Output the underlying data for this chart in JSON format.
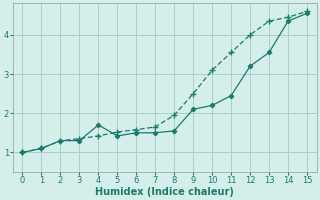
{
  "line_color": "#1a7a6e",
  "bg_color": "#d4eeea",
  "grid_color": "#aacfca",
  "xlabel": "Humidex (Indice chaleur)",
  "xlim": [
    -0.5,
    15.5
  ],
  "ylim": [
    0.5,
    4.8
  ],
  "xticks": [
    0,
    1,
    2,
    3,
    4,
    5,
    6,
    7,
    8,
    9,
    10,
    11,
    12,
    13,
    14,
    15
  ],
  "yticks": [
    1,
    2,
    3,
    4
  ],
  "line1_pts": [
    [
      0,
      1.0
    ],
    [
      1,
      1.1
    ],
    [
      2,
      1.3
    ],
    [
      3,
      1.3
    ],
    [
      4,
      1.7
    ],
    [
      5,
      1.42
    ],
    [
      6,
      1.5
    ],
    [
      7,
      1.5
    ],
    [
      8,
      1.55
    ],
    [
      9,
      2.1
    ],
    [
      10,
      2.2
    ],
    [
      11,
      2.45
    ],
    [
      12,
      3.2
    ],
    [
      13,
      3.55
    ],
    [
      14,
      4.35
    ],
    [
      15,
      4.55
    ]
  ],
  "line2_pts": [
    [
      0,
      1.0
    ],
    [
      1,
      1.1
    ],
    [
      2,
      1.3
    ],
    [
      3,
      1.35
    ],
    [
      4,
      1.42
    ],
    [
      5,
      1.52
    ],
    [
      6,
      1.58
    ],
    [
      7,
      1.65
    ],
    [
      8,
      1.95
    ],
    [
      9,
      2.5
    ],
    [
      10,
      3.1
    ],
    [
      11,
      3.55
    ],
    [
      12,
      4.0
    ],
    [
      13,
      4.35
    ],
    [
      14,
      4.45
    ],
    [
      15,
      4.6
    ]
  ]
}
